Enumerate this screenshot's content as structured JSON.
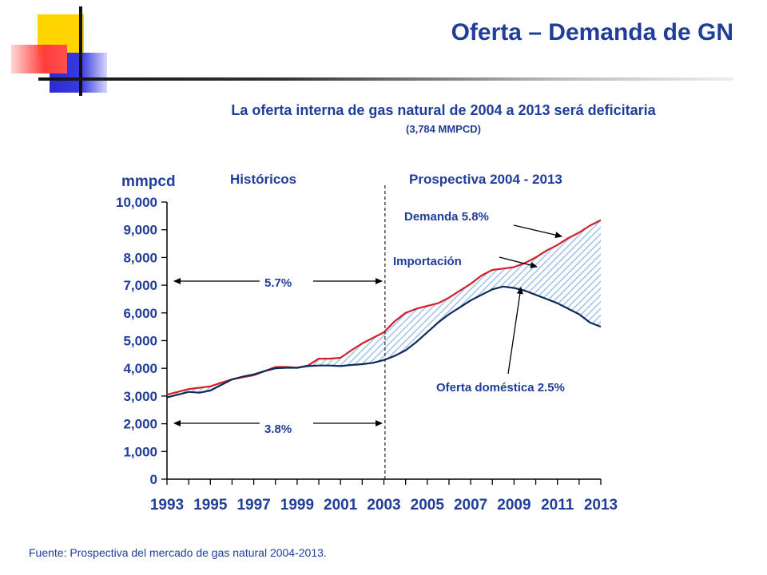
{
  "slide": {
    "title": "Oferta – Demanda de GN",
    "subtitle": "La oferta interna de gas natural de 2004 a 2013 será deficitaria",
    "subtitle_note": "(3,784 MMPCD)",
    "source": "Fuente: Prospectiva del mercado de gas natural 2004-2013."
  },
  "colors": {
    "title": "#1f3d99",
    "demand_line": "#d0202a",
    "supply_line": "#0d2a5a",
    "import_hatch": "#9ec3ec",
    "deco_yellow": "#ffd400",
    "deco_red": "#ff3b3b",
    "deco_blue": "#2b2bd6"
  },
  "chart_data": {
    "type": "line",
    "ylabel": "mmpcd",
    "ylim": [
      0,
      10000
    ],
    "yticks": [
      0,
      1000,
      2000,
      3000,
      4000,
      5000,
      6000,
      7000,
      8000,
      9000,
      10000
    ],
    "ytick_labels": [
      "0",
      "1,000",
      "2,000",
      "3,000",
      "4,000",
      "5,000",
      "6,000",
      "7,000",
      "8,000",
      "9,000",
      "10,000"
    ],
    "xlim": [
      1993,
      2013
    ],
    "xticks": [
      1993,
      1995,
      1997,
      1999,
      2001,
      2003,
      2005,
      2007,
      2009,
      2011,
      2013
    ],
    "xtick_labels": [
      "1993",
      "1995",
      "1997",
      "1999",
      "2001",
      "2003",
      "2005",
      "2007",
      "2009",
      "2011",
      "2013"
    ],
    "divider_year": 2003,
    "sections": {
      "historic": "Históricos",
      "prospective": "Prospectiva  2004 - 2013"
    },
    "series": [
      {
        "name": "Demanda",
        "color": "#d0202a",
        "x": [
          1993,
          1993.5,
          1994,
          1994.5,
          1995,
          1995.5,
          1996,
          1996.5,
          1997,
          1997.5,
          1998,
          1998.5,
          1999,
          1999.5,
          2000,
          2000.5,
          2001,
          2001.5,
          2002,
          2002.5,
          2003,
          2003.5,
          2004,
          2004.5,
          2005,
          2005.5,
          2006,
          2006.5,
          2007,
          2007.5,
          2008,
          2008.5,
          2009,
          2009.5,
          2010,
          2010.5,
          2011,
          2011.5,
          2012,
          2012.5,
          2013
        ],
        "y": [
          3050,
          3150,
          3250,
          3300,
          3350,
          3480,
          3600,
          3680,
          3750,
          3900,
          4050,
          4050,
          4020,
          4100,
          4350,
          4350,
          4380,
          4650,
          4900,
          5100,
          5300,
          5700,
          6000,
          6150,
          6250,
          6350,
          6550,
          6800,
          7050,
          7350,
          7550,
          7600,
          7650,
          7800,
          8000,
          8250,
          8450,
          8700,
          8900,
          9150,
          9350
        ]
      },
      {
        "name": "Oferta doméstica",
        "color": "#0d2a5a",
        "x": [
          1993,
          1993.5,
          1994,
          1994.5,
          1995,
          1995.5,
          1996,
          1996.5,
          1997,
          1997.5,
          1998,
          1998.5,
          1999,
          1999.5,
          2000,
          2000.5,
          2001,
          2001.5,
          2002,
          2002.5,
          2003,
          2003.5,
          2004,
          2004.5,
          2005,
          2005.5,
          2006,
          2006.5,
          2007,
          2007.5,
          2008,
          2008.5,
          2009,
          2009.5,
          2010,
          2010.5,
          2011,
          2011.5,
          2012,
          2012.5,
          2013
        ],
        "y": [
          2950,
          3050,
          3150,
          3120,
          3200,
          3400,
          3600,
          3700,
          3780,
          3900,
          4000,
          4020,
          4020,
          4080,
          4100,
          4100,
          4080,
          4120,
          4150,
          4200,
          4300,
          4450,
          4650,
          4950,
          5300,
          5650,
          5950,
          6200,
          6450,
          6650,
          6850,
          6950,
          6900,
          6800,
          6650,
          6500,
          6350,
          6150,
          5950,
          5650,
          5500
        ]
      }
    ],
    "annotations": {
      "demand_growth": "Demanda  5.8%",
      "imports": "Importación",
      "supply_growth": "Oferta doméstica 2.5%",
      "historic_demand_growth": "5.7%",
      "historic_supply_growth": "3.8%"
    }
  }
}
